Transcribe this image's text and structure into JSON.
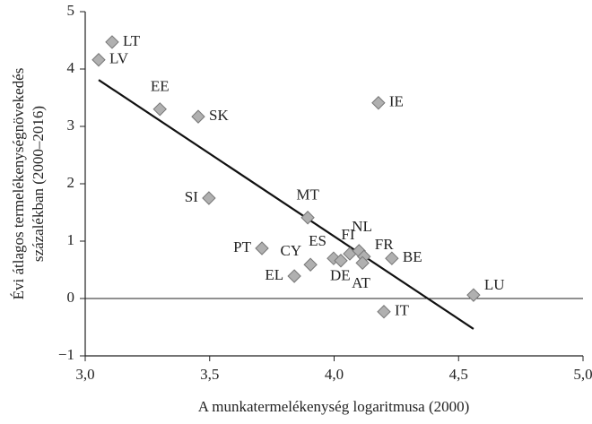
{
  "chart_data": {
    "type": "scatter",
    "x_label": "A munkatermelékenység logaritmusa (2000)",
    "y_label": [
      "Évi átlagos termelékenységnövekedés",
      "százalékban (2000–2016)"
    ],
    "labels": [
      "LT",
      "LV",
      "EE",
      "SK",
      "IE",
      "SI",
      "MT",
      "PT",
      "CY",
      "EL",
      "ES",
      "DE",
      "FI",
      "NL",
      "FR",
      "AT",
      "BE",
      "LU",
      "IT"
    ],
    "x": [
      3.108,
      3.054,
      3.3,
      3.454,
      4.178,
      3.497,
      3.894,
      3.71,
      3.905,
      3.84,
      3.998,
      4.027,
      4.063,
      4.1,
      4.12,
      4.114,
      4.232,
      4.56,
      4.2
    ],
    "y": [
      4.47,
      4.16,
      3.3,
      3.17,
      3.41,
      1.75,
      1.41,
      0.875,
      0.59,
      0.39,
      0.7,
      0.66,
      0.78,
      0.83,
      0.73,
      0.62,
      0.7,
      0.06,
      -0.23
    ],
    "color": "#b0b0b0",
    "trendline": {
      "x": [
        3.054,
        4.56
      ],
      "y": [
        3.81,
        -0.53
      ],
      "color": "#111"
    },
    "xlim": [
      3.0,
      5.0
    ],
    "xticks": [
      {
        "value": 3.0,
        "label": "3,0"
      },
      {
        "value": 3.5,
        "label": "3,5"
      },
      {
        "value": 4.0,
        "label": "4,0"
      },
      {
        "value": 4.5,
        "label": "4,5"
      },
      {
        "value": 5.0,
        "label": "5,0"
      }
    ],
    "ylim": [
      -1,
      5
    ],
    "yticks": [
      {
        "value": -1,
        "label": "−1"
      },
      0,
      1,
      2,
      3,
      4,
      5
    ]
  }
}
